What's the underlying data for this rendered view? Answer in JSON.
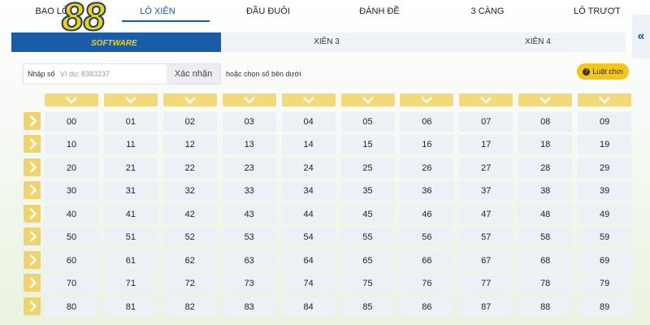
{
  "tabs": [
    "BAO LÔ",
    "LÔ XIÊN",
    "ĐẦU ĐUÔI",
    "ĐÁNH ĐỀ",
    "3 CÀNG",
    "LÔ TRƯỢT"
  ],
  "logo": {
    "mark": "88",
    "caption": "SOFTWARE"
  },
  "subtabs": [
    "XIÊN 3",
    "XIÊN 4"
  ],
  "input": {
    "label": "Nhập số",
    "placeholder": "Ví dụ: 8383237",
    "button": "Xác nhận",
    "hint": "hoặc chọn số bên dưới"
  },
  "rules_button": "Luật chơi",
  "collapse": "«",
  "grid": {
    "rows": [
      [
        "00",
        "01",
        "02",
        "03",
        "04",
        "05",
        "06",
        "07",
        "08",
        "09"
      ],
      [
        "10",
        "11",
        "12",
        "13",
        "14",
        "15",
        "16",
        "17",
        "18",
        "19"
      ],
      [
        "20",
        "21",
        "22",
        "23",
        "24",
        "25",
        "26",
        "27",
        "28",
        "29"
      ],
      [
        "30",
        "31",
        "32",
        "33",
        "34",
        "35",
        "36",
        "37",
        "38",
        "39"
      ],
      [
        "40",
        "41",
        "42",
        "43",
        "44",
        "45",
        "46",
        "47",
        "48",
        "49"
      ],
      [
        "50",
        "51",
        "52",
        "53",
        "54",
        "55",
        "56",
        "57",
        "58",
        "59"
      ],
      [
        "60",
        "61",
        "62",
        "63",
        "64",
        "65",
        "66",
        "67",
        "68",
        "69"
      ],
      [
        "70",
        "71",
        "72",
        "73",
        "74",
        "75",
        "76",
        "77",
        "78",
        "79"
      ],
      [
        "80",
        "81",
        "82",
        "83",
        "84",
        "85",
        "86",
        "87",
        "88",
        "89"
      ]
    ]
  }
}
